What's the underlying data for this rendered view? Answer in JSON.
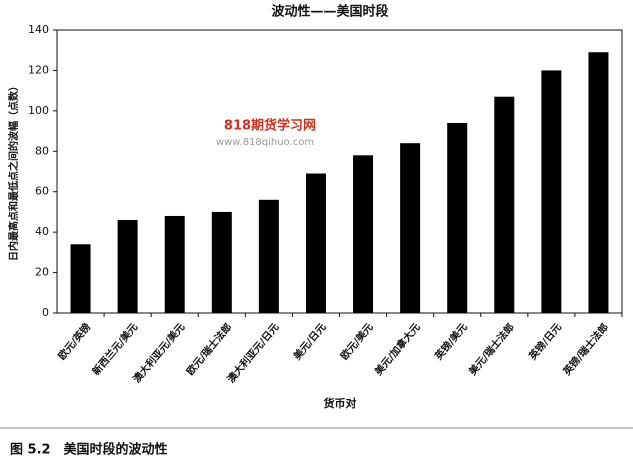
{
  "chart_data": {
    "type": "bar",
    "title": "波动性——美国时段",
    "y_label": "日内最高点和最低点之间的波幅（点数）",
    "x_label": "货币对",
    "caption": "图 5.2　美国时段的波动性",
    "watermark": "818期货学习网",
    "watermark_url": "www.818qihuo.com",
    "categories": [
      "欧元/英镑",
      "新西兰元/美元",
      "澳大利亚元/美元",
      "欧元/瑞士法郎",
      "澳大利亚元/日元",
      "美元/日元",
      "欧元/美元",
      "美元/加拿大元",
      "英镑/美元",
      "美元/瑞士法郎",
      "英镑/日元",
      "英镑/瑞士法郎"
    ],
    "values": [
      34,
      46,
      48,
      50,
      56,
      69,
      78,
      84,
      94,
      107,
      120,
      129
    ],
    "color": "#000000",
    "ylim": [
      0,
      140
    ],
    "yticks": [
      0,
      20,
      40,
      60,
      80,
      100,
      120,
      140
    ],
    "grid": false
  }
}
